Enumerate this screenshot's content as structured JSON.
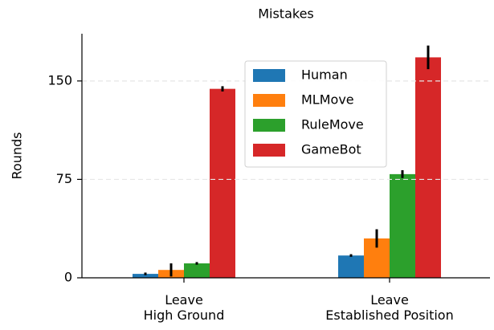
{
  "chart_data": {
    "type": "bar",
    "title": "Mistakes",
    "ylabel": "Rounds",
    "categories": [
      "Leave\nHigh Ground",
      "Leave\nEstablished Position"
    ],
    "series": [
      {
        "name": "Human",
        "color": "#1f77b4",
        "values": [
          3,
          17
        ],
        "errors": [
          1,
          1
        ]
      },
      {
        "name": "MLMove",
        "color": "#ff7f0e",
        "values": [
          6,
          30
        ],
        "errors": [
          5,
          7
        ]
      },
      {
        "name": "RuleMove",
        "color": "#2ca02c",
        "values": [
          11,
          79
        ],
        "errors": [
          1,
          3
        ]
      },
      {
        "name": "GameBot",
        "color": "#d62728",
        "values": [
          144,
          168
        ],
        "errors": [
          2,
          9
        ]
      }
    ],
    "ylim": [
      0,
      186
    ],
    "yticks": [
      0,
      75,
      150
    ],
    "grid": true,
    "legend": "upper center"
  }
}
